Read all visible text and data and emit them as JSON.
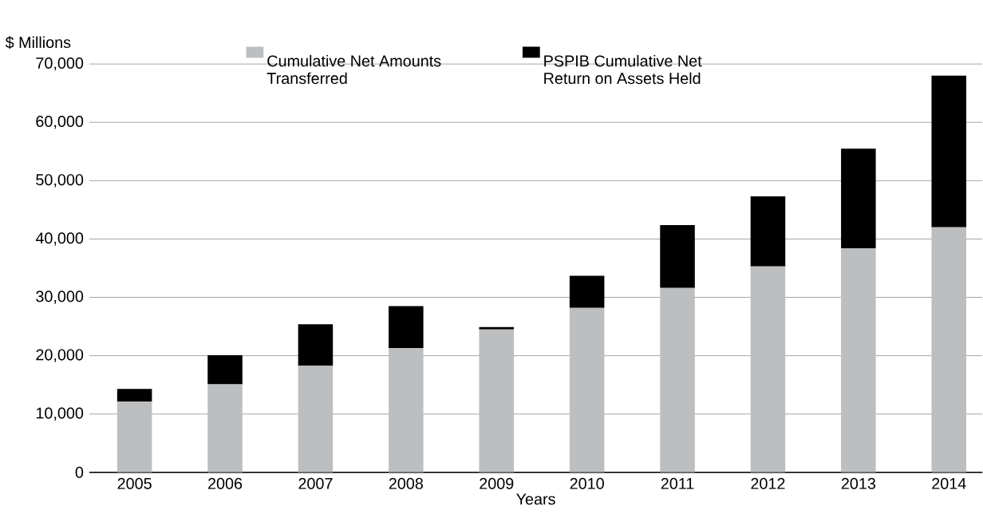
{
  "chart_data": {
    "type": "bar",
    "stacked": true,
    "ylabel": "$ Millions",
    "xlabel": "Years",
    "categories": [
      "2005",
      "2006",
      "2007",
      "2008",
      "2009",
      "2010",
      "2011",
      "2012",
      "2013",
      "2014"
    ],
    "series": [
      {
        "name": "Cumulative Net Amounts Transferred",
        "color": "#bcbec0",
        "values": [
          12100,
          15100,
          18300,
          21300,
          24500,
          28200,
          31600,
          35300,
          38400,
          42000
        ]
      },
      {
        "name": "PSPIB Cumulative Net Return on Assets Held",
        "color": "#000000",
        "values": [
          2200,
          5000,
          7100,
          7200,
          400,
          5500,
          10800,
          12000,
          17100,
          26000
        ]
      }
    ],
    "ylim": [
      0,
      70000
    ],
    "yticks": [
      0,
      {
        "value": 10000,
        "label": "10,000"
      },
      {
        "value": 20000,
        "label": "20,000"
      },
      {
        "value": 30000,
        "label": "30,000"
      },
      {
        "value": 40000,
        "label": "40,000"
      },
      {
        "value": 50000,
        "label": "50,000"
      },
      {
        "value": 60000,
        "label": "60,000"
      },
      {
        "value": 70000,
        "label": "70,000"
      }
    ],
    "grid": "y",
    "legend": "top"
  }
}
